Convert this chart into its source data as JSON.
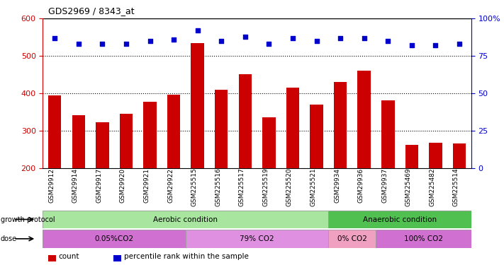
{
  "title": "GDS2969 / 8343_at",
  "samples": [
    "GSM29912",
    "GSM29914",
    "GSM29917",
    "GSM29920",
    "GSM29921",
    "GSM29922",
    "GSM225515",
    "GSM225516",
    "GSM225517",
    "GSM225519",
    "GSM225520",
    "GSM225521",
    "GSM29934",
    "GSM29936",
    "GSM29937",
    "GSM225469",
    "GSM225482",
    "GSM225514"
  ],
  "counts": [
    395,
    342,
    322,
    345,
    378,
    396,
    535,
    410,
    452,
    336,
    415,
    370,
    430,
    460,
    382,
    262,
    268,
    265
  ],
  "percentile": [
    87,
    83,
    83,
    83,
    85,
    86,
    92,
    85,
    88,
    83,
    87,
    85,
    87,
    87,
    85,
    82,
    82,
    83
  ],
  "ylim_left": [
    200,
    600
  ],
  "ylim_right": [
    0,
    100
  ],
  "yticks_left": [
    200,
    300,
    400,
    500,
    600
  ],
  "yticks_right": [
    0,
    25,
    50,
    75,
    100
  ],
  "bar_color": "#cc0000",
  "dot_color": "#0000cc",
  "growth_protocol_groups": [
    {
      "label": "Aerobic condition",
      "start": 0,
      "end": 12,
      "color": "#a8e6a0"
    },
    {
      "label": "Anaerobic condition",
      "start": 12,
      "end": 18,
      "color": "#50c050"
    }
  ],
  "dose_groups": [
    {
      "label": "0.05%CO2",
      "start": 0,
      "end": 6,
      "color": "#d070d0"
    },
    {
      "label": "79% CO2",
      "start": 6,
      "end": 12,
      "color": "#e090e0"
    },
    {
      "label": "0% CO2",
      "start": 12,
      "end": 14,
      "color": "#f0a0c0"
    },
    {
      "label": "100% CO2",
      "start": 14,
      "end": 18,
      "color": "#d070d0"
    }
  ],
  "legend_items": [
    {
      "label": "count",
      "color": "#cc0000"
    },
    {
      "label": "percentile rank within the sample",
      "color": "#0000cc"
    }
  ]
}
